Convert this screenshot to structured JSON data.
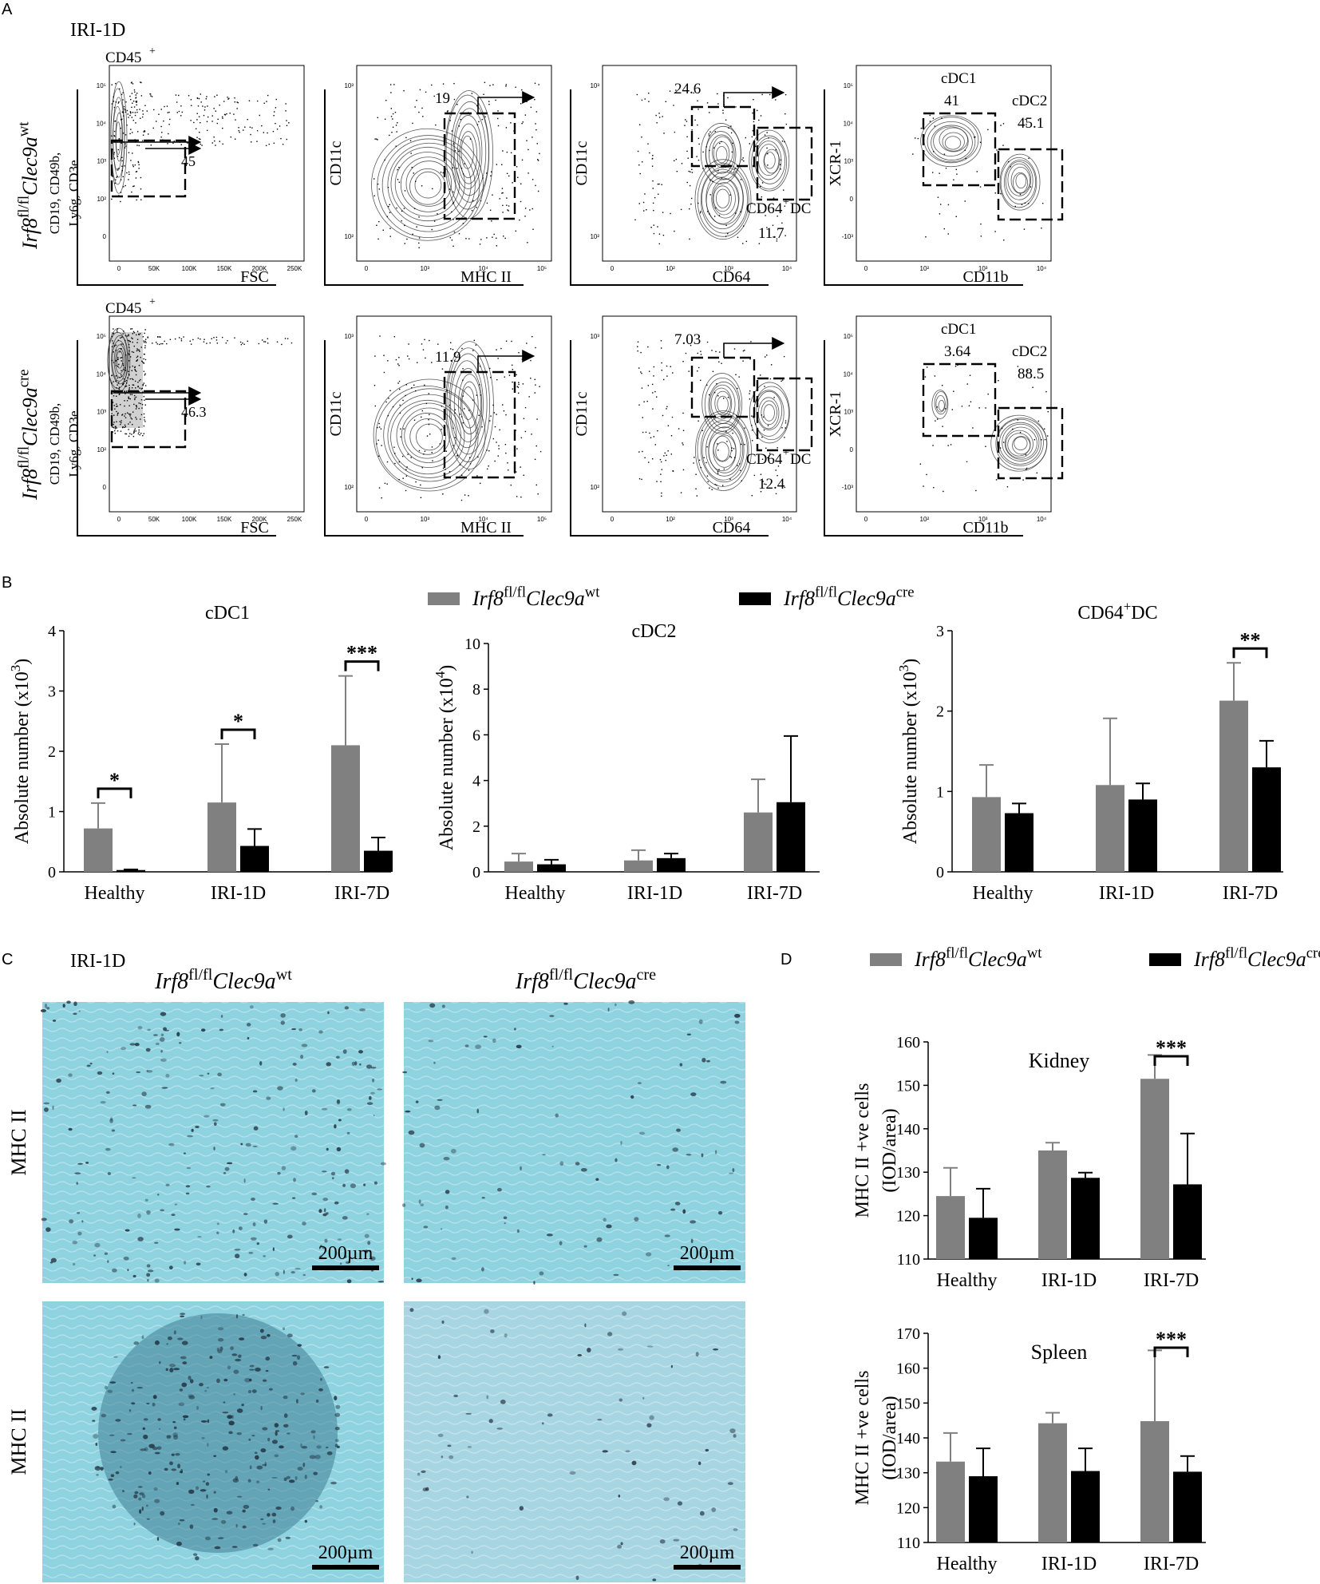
{
  "panel_letters": {
    "a": "A",
    "b": "B",
    "c": "C",
    "d": "D"
  },
  "genotypes": {
    "wt": {
      "base": "Irf8",
      "sup1": "fl/fl",
      "gene": "Clec9a",
      "sup2": "wt"
    },
    "cre": {
      "base": "Irf8",
      "sup1": "fl/fl",
      "gene": "Clec9a",
      "sup2": "cre"
    }
  },
  "colors": {
    "wt": "#808080",
    "cre": "#000000",
    "tissue_bg": "#8fd3e0",
    "stain": "#1d2b3a"
  },
  "panel_a": {
    "condition": "IRI-1D",
    "gate1_title": "CD45",
    "gate1_title_sup": "+",
    "row_ylabels": [
      "CD19, CD49b,",
      "Ly6g, CD3e"
    ],
    "rows": [
      {
        "genotype": "wt",
        "gates": [
          "45",
          "19",
          "24.6",
          "11.7",
          "41",
          "45.1"
        ]
      },
      {
        "genotype": "cre",
        "gates": [
          "46.3",
          "11.9",
          "7.03",
          "12.4",
          "3.64",
          "88.5"
        ]
      }
    ],
    "plots": [
      {
        "xlabel": "FSC",
        "ylabel": "",
        "xticks": [
          "0",
          "50K",
          "100K",
          "150K",
          "200K",
          "250K"
        ],
        "yticks": [
          "10⁵",
          "10⁴",
          "10³",
          "10²",
          "0"
        ]
      },
      {
        "xlabel": "MHC II",
        "ylabel": "CD11c",
        "xticks": [
          "0",
          "10³",
          "10⁴",
          "10⁵"
        ],
        "yticks": [
          "10³",
          "10²"
        ]
      },
      {
        "xlabel": "CD64",
        "ylabel": "CD11c",
        "xticks": [
          "0",
          "10²",
          "10³",
          "10⁴"
        ],
        "yticks": [
          "10³",
          "10²"
        ]
      },
      {
        "xlabel": "CD11b",
        "ylabel": "XCR-1",
        "xticks": [
          "0",
          "10²",
          "10³",
          "10⁴"
        ],
        "yticks": [
          "10⁵",
          "10⁴",
          "10³",
          "0",
          "-10³"
        ]
      }
    ],
    "gate_names": {
      "cdc1": "cDC1",
      "cdc2": "cDC2",
      "cd64dc": "CD64",
      "cd64dc_sup": "+",
      "cd64dc_tail": "DC"
    }
  },
  "chart_data": [
    {
      "type": "bar",
      "panel": "B",
      "title": "cDC1",
      "ylabel": "Absolute number (x10",
      "ylabel_sup": "3",
      "ylabel_end": ")",
      "categories": [
        "Healthy",
        "IRI-1D",
        "IRI-7D"
      ],
      "ylim": [
        0,
        4
      ],
      "yticks": [
        0,
        1,
        2,
        3,
        4
      ],
      "series": [
        {
          "key": "wt",
          "values": [
            0.72,
            1.15,
            2.1
          ],
          "errors": [
            0.42,
            0.97,
            1.15
          ]
        },
        {
          "key": "cre",
          "values": [
            0.03,
            0.43,
            0.35
          ],
          "errors": [
            0.01,
            0.28,
            0.22
          ]
        }
      ],
      "significance": [
        {
          "category": 0,
          "label": "*"
        },
        {
          "category": 1,
          "label": "*"
        },
        {
          "category": 2,
          "label": "***"
        }
      ]
    },
    {
      "type": "bar",
      "panel": "B",
      "title": "cDC2",
      "ylabel": "Absolute number (x10",
      "ylabel_sup": "4",
      "ylabel_end": ")",
      "categories": [
        "Healthy",
        "IRI-1D",
        "IRI-7D"
      ],
      "ylim": [
        0,
        10
      ],
      "yticks": [
        0,
        2,
        4,
        6,
        8,
        10
      ],
      "series": [
        {
          "key": "wt",
          "values": [
            0.45,
            0.5,
            2.6
          ],
          "errors": [
            0.35,
            0.45,
            1.45
          ]
        },
        {
          "key": "cre",
          "values": [
            0.33,
            0.6,
            3.05
          ],
          "errors": [
            0.2,
            0.2,
            2.9
          ]
        }
      ],
      "significance": []
    },
    {
      "type": "bar",
      "panel": "B",
      "title": "CD64",
      "title_sup": "+",
      "title_tail": "DC",
      "ylabel": "Absolute number (x10",
      "ylabel_sup": "3",
      "ylabel_end": ")",
      "categories": [
        "Healthy",
        "IRI-1D",
        "IRI-7D"
      ],
      "ylim": [
        0,
        3
      ],
      "yticks": [
        0,
        1,
        2,
        3
      ],
      "series": [
        {
          "key": "wt",
          "values": [
            0.93,
            1.08,
            2.13
          ],
          "errors": [
            0.4,
            0.83,
            0.47
          ]
        },
        {
          "key": "cre",
          "values": [
            0.73,
            0.9,
            1.3
          ],
          "errors": [
            0.12,
            0.2,
            0.33
          ]
        }
      ],
      "significance": [
        {
          "category": 2,
          "label": "**"
        }
      ]
    },
    {
      "type": "bar",
      "panel": "D",
      "title": "Kidney",
      "ylabel_lines": [
        "MHC II +ve cells",
        "(IOD/area)"
      ],
      "categories": [
        "Healthy",
        "IRI-1D",
        "IRI-7D"
      ],
      "ylim": [
        110,
        160
      ],
      "yticks": [
        110,
        120,
        130,
        140,
        150,
        160
      ],
      "series": [
        {
          "key": "wt",
          "values": [
            124.5,
            135,
            151.5
          ],
          "errors": [
            6.5,
            1.8,
            5.5
          ]
        },
        {
          "key": "cre",
          "values": [
            119.5,
            128.7,
            127.2
          ],
          "errors": [
            6.7,
            1.2,
            11.7
          ]
        }
      ],
      "significance": [
        {
          "category": 2,
          "label": "***"
        }
      ]
    },
    {
      "type": "bar",
      "panel": "D",
      "title": "Spleen",
      "ylabel_lines": [
        "MHC II +ve cells",
        "(IOD/area)"
      ],
      "categories": [
        "Healthy",
        "IRI-1D",
        "IRI-7D"
      ],
      "ylim": [
        110,
        170
      ],
      "yticks": [
        110,
        120,
        130,
        140,
        150,
        160,
        170
      ],
      "series": [
        {
          "key": "wt",
          "values": [
            133.2,
            144.2,
            144.8
          ],
          "errors": [
            8.2,
            3,
            20.3
          ]
        },
        {
          "key": "cre",
          "values": [
            129,
            130.5,
            130.3
          ],
          "errors": [
            8,
            6.5,
            4.5
          ]
        }
      ],
      "significance": [
        {
          "category": 2,
          "label": "***"
        }
      ]
    }
  ],
  "panel_c": {
    "condition": "IRI-1D",
    "row_label": "MHC II",
    "scale_bar": "200µm"
  }
}
